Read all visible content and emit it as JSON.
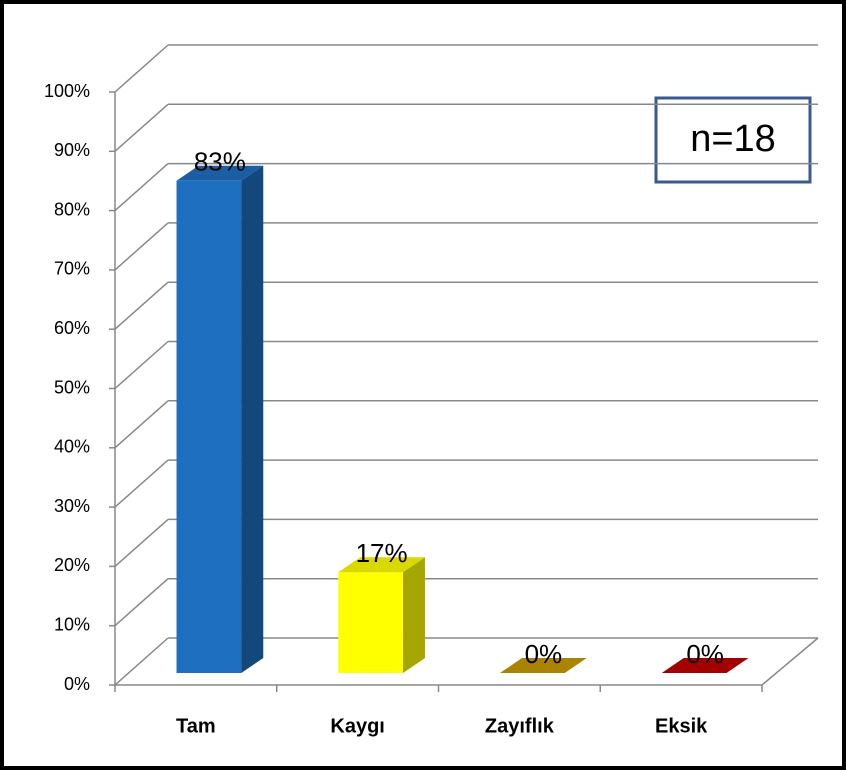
{
  "chart_data": {
    "type": "bar3d",
    "categories": [
      "Tam",
      "Kaygı",
      "Zayıflık",
      "Eksik"
    ],
    "values": [
      83,
      17,
      0,
      0
    ],
    "value_labels": [
      "83%",
      "17%",
      "0%",
      "0%"
    ],
    "colors": [
      "#1f6fc0",
      "#ffff00",
      "#c89a00",
      "#c00000"
    ],
    "ylim": [
      0,
      100
    ],
    "yticks": [
      {
        "value": 0,
        "label": "0%"
      },
      {
        "value": 10,
        "label": "10%"
      },
      {
        "value": 20,
        "label": "20%"
      },
      {
        "value": 30,
        "label": "30%"
      },
      {
        "value": 40,
        "label": "40%"
      },
      {
        "value": 50,
        "label": "50%"
      },
      {
        "value": 60,
        "label": "60%"
      },
      {
        "value": 70,
        "label": "70%"
      },
      {
        "value": 80,
        "label": "80%"
      },
      {
        "value": 90,
        "label": "90%"
      },
      {
        "value": 100,
        "label": "100%"
      }
    ],
    "grid": true,
    "annotation": "n=18"
  }
}
